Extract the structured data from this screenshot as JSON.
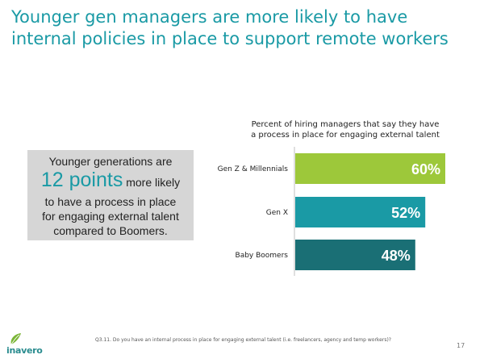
{
  "title": {
    "line1": "Younger gen managers are more likely to have",
    "line2": "internal policies in place to support remote workers"
  },
  "callout": {
    "line1": "Younger generations are",
    "highlight": "12 points",
    "line2_rest": "more likely",
    "line3": "to have a process in place",
    "line4": "for engaging external talent",
    "line5": "compared to Boomers."
  },
  "chart_data": {
    "type": "bar",
    "orientation": "horizontal",
    "title_line1": "Percent of hiring managers that say they have",
    "title_line2": "a process in place for engaging external talent",
    "categories": [
      "Gen Z & Millennials",
      "Gen X",
      "Baby Boomers"
    ],
    "values": [
      60,
      52,
      48
    ],
    "value_labels": [
      "60%",
      "52%",
      "48%"
    ],
    "colors": [
      "#9dc83a",
      "#1a9aa5",
      "#1a6f75"
    ],
    "xlim": [
      0,
      60
    ]
  },
  "footnote": "Q3.11. Do you have an internal process in place for engaging external talent (i.e. freelancers, agency and temp workers)?",
  "page_number": "17",
  "logo": {
    "text": "inavero",
    "color": "#2a8c8f",
    "leaf_color": "#7ab535"
  }
}
